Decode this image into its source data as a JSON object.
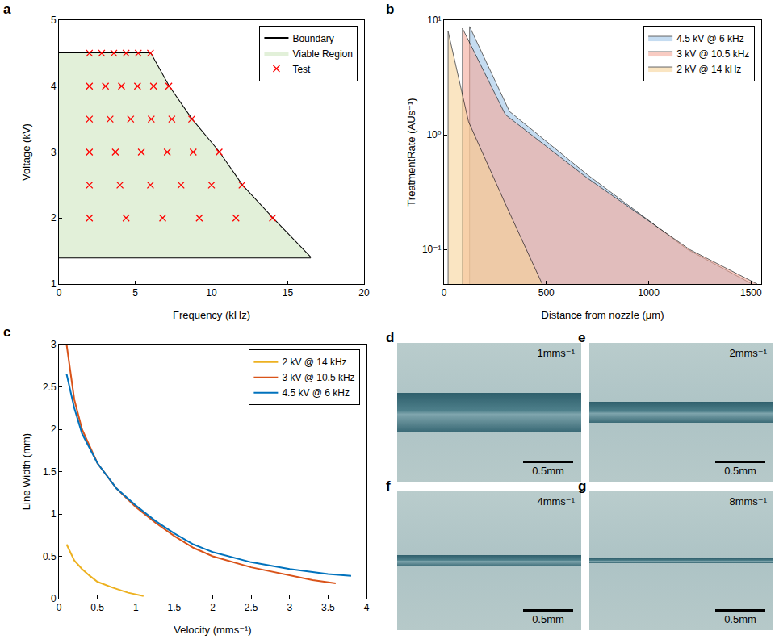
{
  "chart_data": [
    {
      "panel_label": "a",
      "type": "scatter",
      "x_label": "Frequency (kHz)",
      "y_label": "Voltage (kV)",
      "xlim": [
        0,
        20
      ],
      "xticks": [
        0,
        5,
        10,
        15,
        20
      ],
      "ylim": [
        1,
        5
      ],
      "yticks": [
        1,
        2,
        3,
        4,
        5
      ],
      "grid": false,
      "legend": "top right",
      "series": [
        {
          "name": "Boundary",
          "type": "line",
          "color": "#000000",
          "line_style": "solid",
          "x": [
            0,
            6,
            7.2,
            8.7,
            10.5,
            12,
            14,
            16.5,
            0,
            0
          ],
          "values": [
            4.5,
            4.5,
            4,
            3.5,
            3,
            2.5,
            2,
            1.4,
            1.4,
            4.5
          ]
        },
        {
          "name": "Viable Region",
          "type": "area",
          "color": "#e2f0d9",
          "line_style": "none",
          "x": [
            0,
            6,
            7.2,
            8.7,
            10.5,
            12,
            14,
            16.5,
            0,
            0
          ],
          "values": [
            4.5,
            4.5,
            4,
            3.5,
            3,
            2.5,
            2,
            1.4,
            1.4,
            4.5
          ]
        },
        {
          "name": "Test",
          "type": "scatter",
          "color": "#ff0000",
          "marker": "x",
          "x": [
            2,
            2.8,
            3.6,
            4.4,
            5.2,
            6,
            2,
            3.05,
            4.1,
            5.15,
            6.2,
            7.2,
            2,
            3.35,
            4.7,
            6.05,
            7.4,
            8.7,
            2,
            3.7,
            5.4,
            7.1,
            8.8,
            10.5,
            2,
            4,
            6,
            8,
            10,
            12,
            2,
            4.4,
            6.8,
            9.2,
            11.6,
            14
          ],
          "values": [
            4.5,
            4.5,
            4.5,
            4.5,
            4.5,
            4.5,
            4,
            4,
            4,
            4,
            4,
            4,
            3.5,
            3.5,
            3.5,
            3.5,
            3.5,
            3.5,
            3,
            3,
            3,
            3,
            3,
            3,
            2.5,
            2.5,
            2.5,
            2.5,
            2.5,
            2.5,
            2,
            2,
            2,
            2,
            2,
            2
          ]
        }
      ]
    },
    {
      "panel_label": "b",
      "type": "area",
      "x_label": "Distance from nozzle (μm)",
      "y_label": "TreatmentRate (AUs⁻¹)",
      "xlim": [
        0,
        1550
      ],
      "xticks": [
        0,
        500,
        1000,
        1500
      ],
      "ylim": [
        0.05,
        10
      ],
      "yticks": [
        {
          "value": 0.1,
          "label": "10⁻¹"
        },
        {
          "value": 1,
          "label": "10⁰"
        },
        {
          "value": 10,
          "label": "10¹"
        }
      ],
      "log": "y",
      "grid": false,
      "legend": "top right",
      "series": [
        {
          "name": "4.5 kV @ 6 kHz",
          "color": "#9fc5e8",
          "line_style": "solid",
          "x": [
            125,
            125,
            320,
            700,
            1190,
            1505
          ],
          "values": [
            0.05,
            8.8,
            1.6,
            0.45,
            0.1,
            0.05
          ]
        },
        {
          "name": "3 kV @ 10.5 kHz",
          "color": "#f4a99a",
          "line_style": "solid",
          "x": [
            90,
            90,
            300,
            700,
            1200,
            1530
          ],
          "values": [
            0.05,
            8.5,
            1.5,
            0.42,
            0.1,
            0.05
          ]
        },
        {
          "name": "2 kV @ 14 kHz",
          "color": "#f7d49a",
          "line_style": "solid",
          "x": [
            20,
            20,
            120,
            300,
            480
          ],
          "values": [
            0.05,
            8,
            1.3,
            0.25,
            0.05
          ]
        }
      ]
    },
    {
      "panel_label": "c",
      "type": "line",
      "x_label": "Velocity (mms⁻¹)",
      "y_label": "Line Width (mm)",
      "xlim": [
        0,
        4
      ],
      "xticks": [
        0,
        0.5,
        1,
        1.5,
        2,
        2.5,
        3,
        3.5,
        4
      ],
      "ylim": [
        0,
        3
      ],
      "yticks": [
        0,
        0.5,
        1,
        1.5,
        2,
        2.5,
        3
      ],
      "grid": false,
      "legend": "top right",
      "series": [
        {
          "name": "2 kV @ 14 kHz",
          "color": "#edb120",
          "line_style": "solid",
          "x": [
            0.1,
            0.2,
            0.3,
            0.4,
            0.5,
            0.7,
            0.9,
            1.1
          ],
          "values": [
            0.64,
            0.45,
            0.35,
            0.27,
            0.2,
            0.13,
            0.07,
            0.03
          ]
        },
        {
          "name": "3 kV @ 10.5 kHz",
          "color": "#d95319",
          "line_style": "solid",
          "x": [
            0.1,
            0.2,
            0.3,
            0.5,
            0.75,
            1,
            1.25,
            1.5,
            1.75,
            2,
            2.5,
            3,
            3.3,
            3.6
          ],
          "values": [
            3,
            2.35,
            2,
            1.6,
            1.3,
            1.08,
            0.9,
            0.74,
            0.6,
            0.5,
            0.37,
            0.28,
            0.22,
            0.18
          ]
        },
        {
          "name": "4.5 kV @ 6 kHz",
          "color": "#0072bd",
          "line_style": "solid",
          "x": [
            0.1,
            0.2,
            0.3,
            0.5,
            0.75,
            1,
            1.25,
            1.5,
            1.75,
            2,
            2.5,
            3,
            3.5,
            3.8
          ],
          "values": [
            2.65,
            2.25,
            1.95,
            1.6,
            1.3,
            1.1,
            0.92,
            0.77,
            0.64,
            0.55,
            0.43,
            0.35,
            0.29,
            0.27
          ]
        }
      ]
    }
  ],
  "photos": [
    {
      "panel_label": "d",
      "caption": "1mms⁻¹",
      "scale_bar": "0.5mm"
    },
    {
      "panel_label": "e",
      "caption": "2mms⁻¹",
      "scale_bar": "0.5mm"
    },
    {
      "panel_label": "f",
      "caption": "4mms⁻¹",
      "scale_bar": "0.5mm"
    },
    {
      "panel_label": "g",
      "caption": "8mms⁻¹",
      "scale_bar": "0.5mm"
    }
  ]
}
